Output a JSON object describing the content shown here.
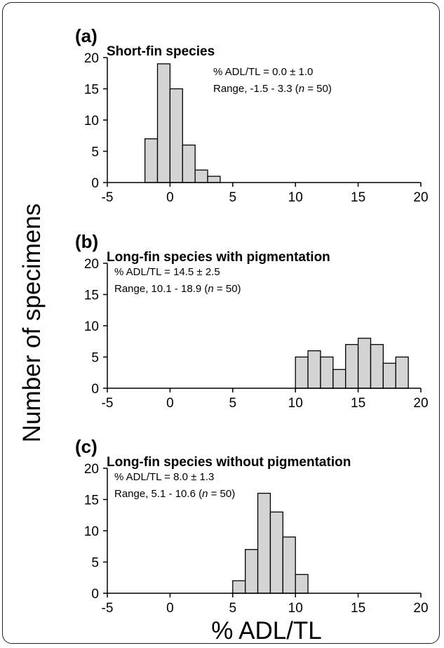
{
  "figure": {
    "ylabel": "Number of specimens",
    "xlabel": "% ADL/TL"
  },
  "chart_data": [
    {
      "type": "bar",
      "panel_label": "(a)",
      "title": "Short-fin species",
      "stat_line1": "% ADL/TL = 0.0 ± 1.0",
      "stat_line2_prefix": "Range, -1.5 - 3.3 (",
      "stat_line2_n": "n",
      "stat_line2_suffix": " = 50)",
      "xlim": [
        -5,
        20
      ],
      "ylim": [
        0,
        20
      ],
      "xticks": [
        -5,
        0,
        5,
        10,
        15,
        20
      ],
      "yticks": [
        0,
        5,
        10,
        15,
        20
      ],
      "bin_width": 1,
      "bin_starts": [
        -2,
        -1,
        0,
        1,
        2,
        3
      ],
      "values": [
        7,
        19,
        15,
        6,
        2,
        1
      ],
      "stat_position": "top-center"
    },
    {
      "type": "bar",
      "panel_label": "(b)",
      "title": "Long-fin species with pigmentation",
      "stat_line1": "% ADL/TL = 14.5 ± 2.5",
      "stat_line2_prefix": "Range, 10.1 - 18.9 (",
      "stat_line2_n": "n",
      "stat_line2_suffix": " = 50)",
      "xlim": [
        -5,
        20
      ],
      "ylim": [
        0,
        20
      ],
      "xticks": [
        -5,
        0,
        5,
        10,
        15,
        20
      ],
      "yticks": [
        0,
        5,
        10,
        15,
        20
      ],
      "bin_width": 1,
      "bin_starts": [
        10,
        11,
        12,
        13,
        14,
        15,
        16,
        17,
        18
      ],
      "values": [
        5,
        6,
        5,
        3,
        7,
        8,
        7,
        4,
        5
      ],
      "stat_position": "top-left"
    },
    {
      "type": "bar",
      "panel_label": "(c)",
      "title": "Long-fin species without pigmentation",
      "stat_line1": "% ADL/TL = 8.0 ± 1.3",
      "stat_line2_prefix": "Range, 5.1 - 10.6 (",
      "stat_line2_n": "n",
      "stat_line2_suffix": " = 50)",
      "xlim": [
        -5,
        20
      ],
      "ylim": [
        0,
        20
      ],
      "xticks": [
        -5,
        0,
        5,
        10,
        15,
        20
      ],
      "yticks": [
        0,
        5,
        10,
        15,
        20
      ],
      "bin_width": 1,
      "bin_starts": [
        5,
        6,
        7,
        8,
        9,
        10
      ],
      "values": [
        2,
        7,
        16,
        13,
        9,
        3
      ],
      "stat_position": "top-left"
    }
  ]
}
